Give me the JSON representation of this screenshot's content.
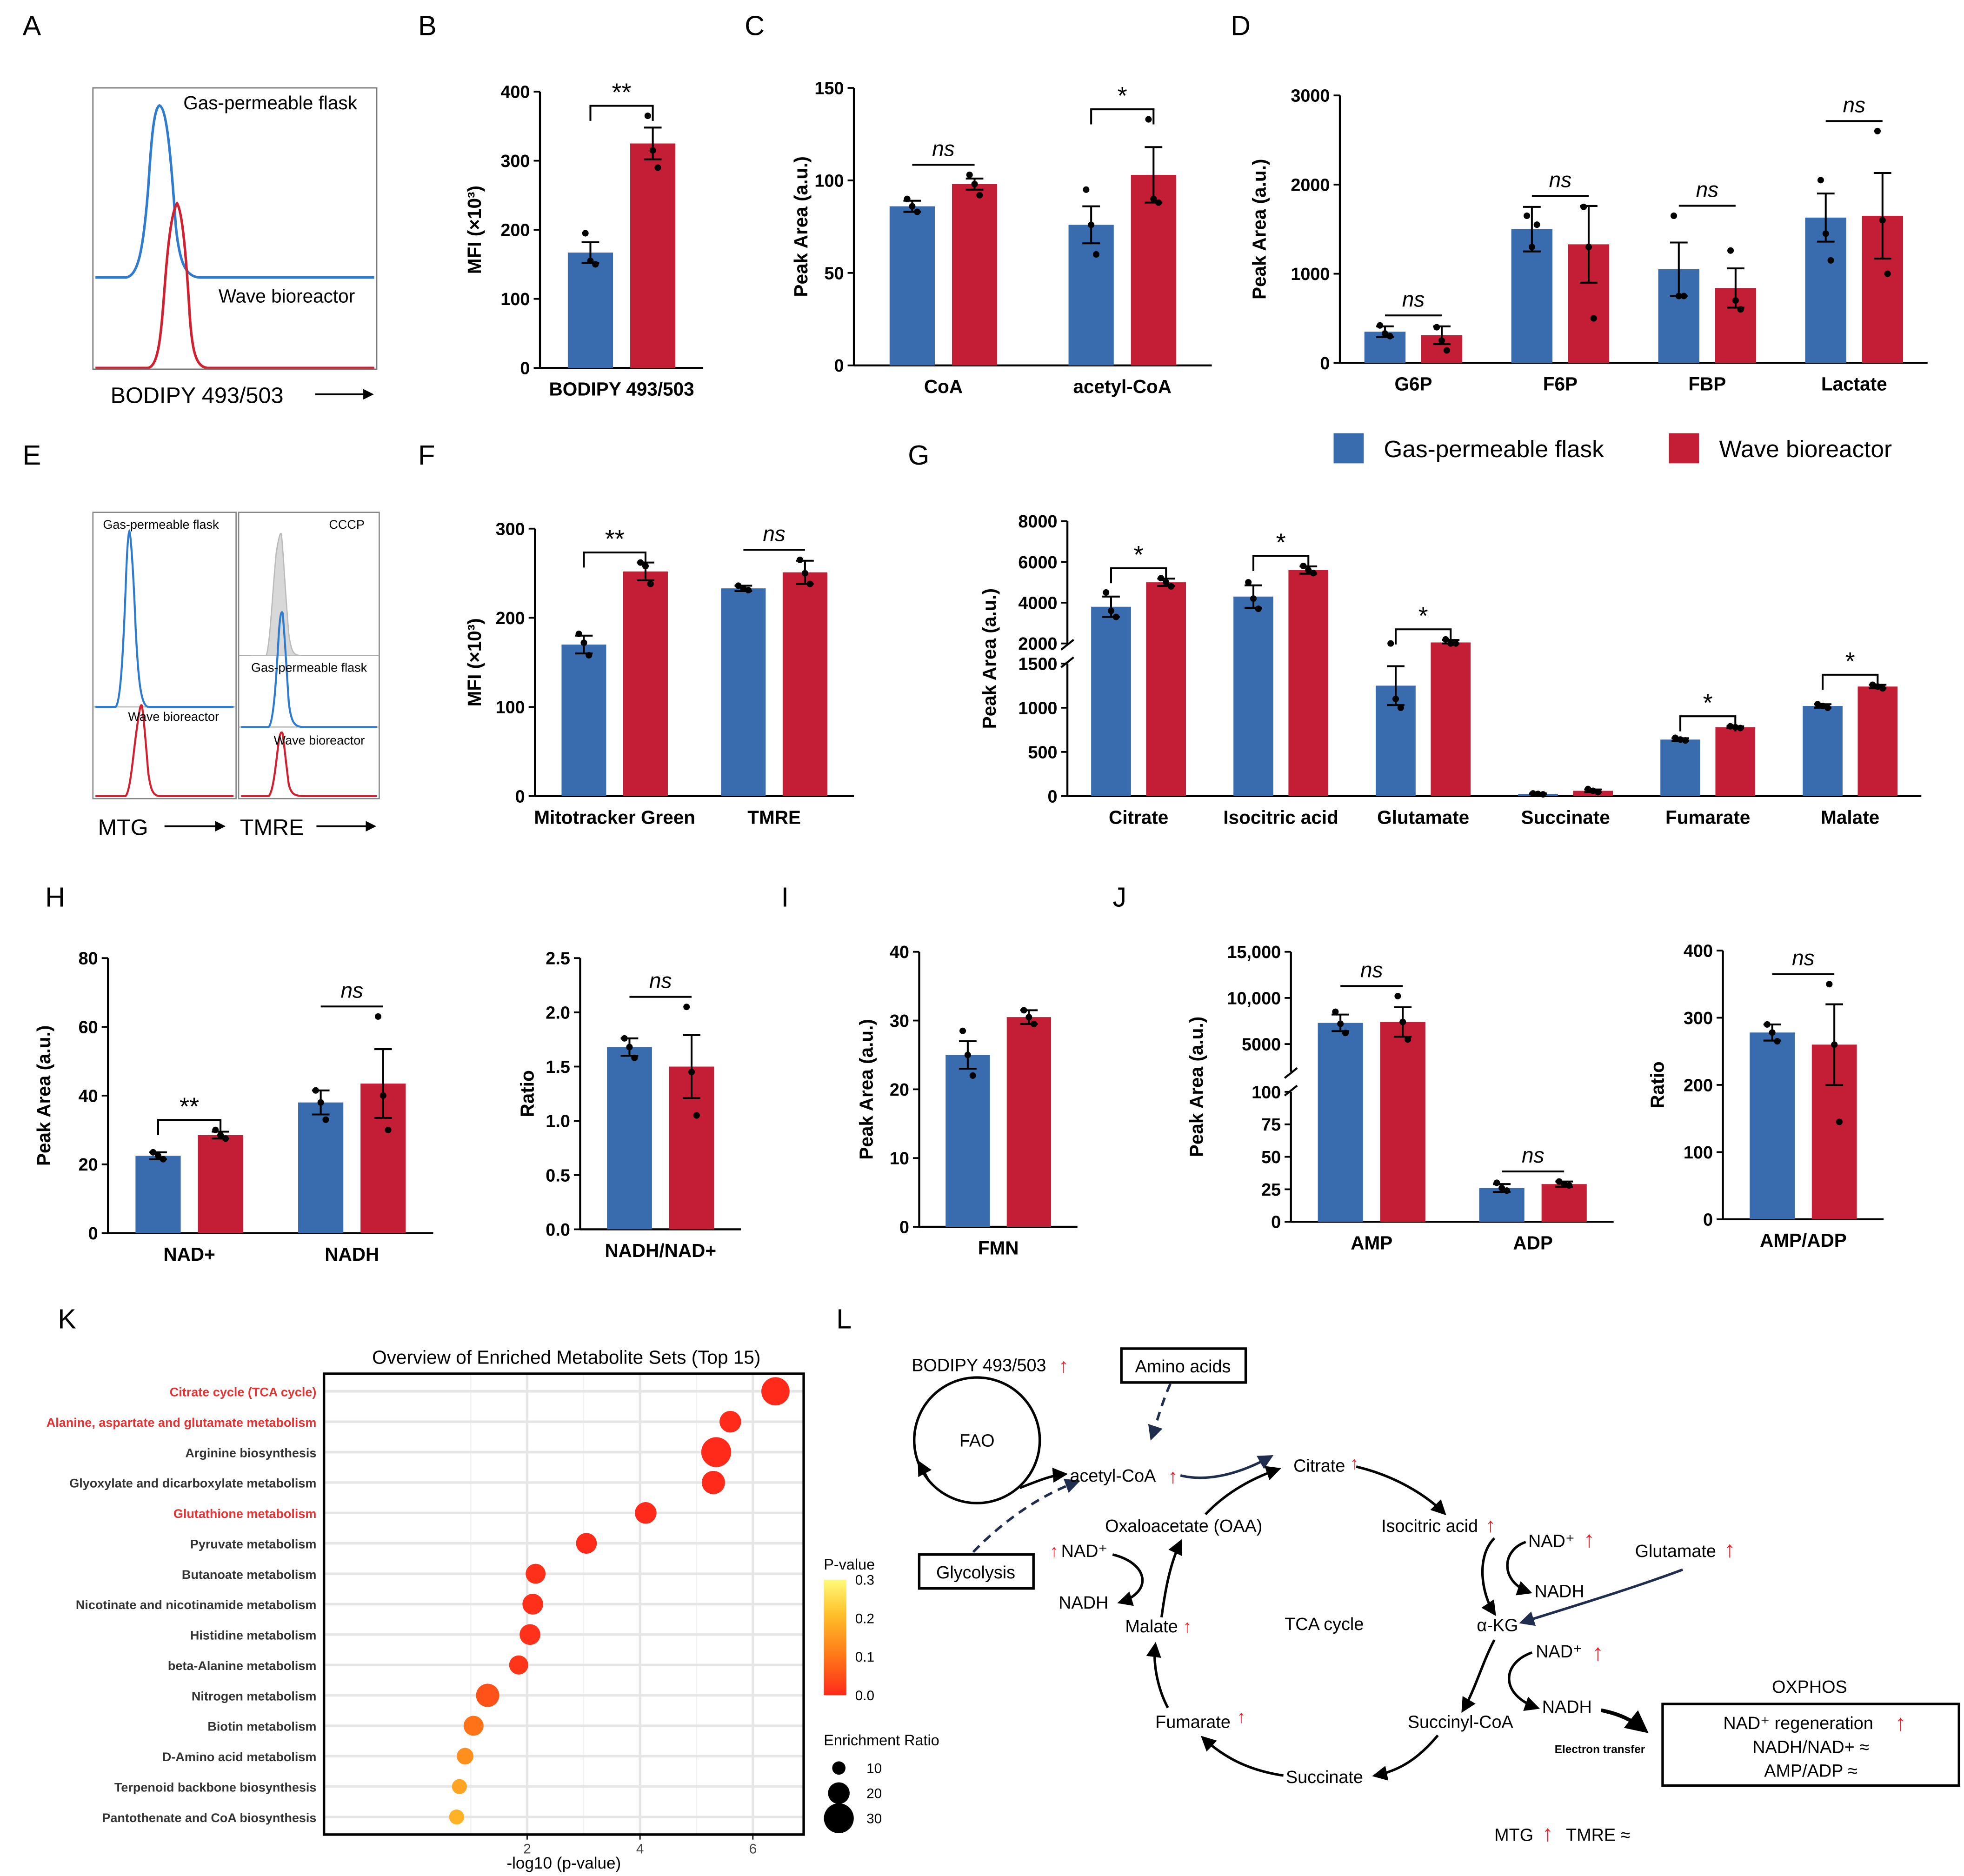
{
  "colors": {
    "blue": "#386CAF",
    "red": "#C41E36",
    "axis": "#000000",
    "sig": "#000000"
  },
  "panels": {
    "A": {
      "letter": "A",
      "top_label": "Gas-permeable flask",
      "bottom_label": "Wave bioreactor",
      "xlabel": "BODIPY 493/503"
    },
    "E": {
      "letter": "E",
      "mtg_top": "Gas-permeable flask",
      "mtg_bottom": "Wave bioreactor",
      "tmre_top": "CCCP",
      "tmre_mid": "Gas-permeable flask",
      "tmre_bottom": "Wave bioreactor",
      "xlabel_mtg": "MTG",
      "xlabel_tmre": "TMRE"
    },
    "G_legend": {
      "items": [
        {
          "label": "Gas-permeable flask",
          "color": "#386CAF"
        },
        {
          "label": "Wave bioreactor",
          "color": "#C41E36"
        }
      ]
    }
  },
  "chart_data": [
    {
      "id": "B",
      "letter": "B",
      "type": "bar",
      "ylabel": "MFI (×10³)",
      "ylim": [
        0,
        400
      ],
      "yticks": [
        0,
        100,
        200,
        300,
        400
      ],
      "categories": [
        "BODIPY 493/503"
      ],
      "series": [
        {
          "name": "Gas-permeable flask",
          "values": [
            167
          ],
          "sem": [
            15
          ],
          "points": [
            [
              195,
              155,
              150
            ]
          ]
        },
        {
          "name": "Wave bioreactor",
          "values": [
            325
          ],
          "sem": [
            23
          ],
          "points": [
            [
              365,
              315,
              290
            ]
          ]
        }
      ],
      "annotations": [
        {
          "category": 0,
          "text": "**"
        }
      ]
    },
    {
      "id": "C",
      "letter": "C",
      "type": "bar",
      "ylabel": "Peak Area (a.u.)",
      "ylim": [
        0,
        150
      ],
      "yticks": [
        0,
        50,
        100,
        150
      ],
      "categories": [
        "CoA",
        "acetyl-CoA"
      ],
      "series": [
        {
          "name": "Gas-permeable flask",
          "values": [
            86,
            76
          ],
          "sem": [
            3,
            10
          ],
          "points": [
            [
              90,
              86,
              83
            ],
            [
              95,
              76,
              60
            ]
          ]
        },
        {
          "name": "Wave bioreactor",
          "values": [
            98,
            103
          ],
          "sem": [
            3,
            15
          ],
          "points": [
            [
              103,
              98,
              92
            ],
            [
              133,
              90,
              88
            ]
          ]
        }
      ],
      "annotations": [
        {
          "category": 0,
          "text": "ns"
        },
        {
          "category": 1,
          "text": "*"
        }
      ]
    },
    {
      "id": "D",
      "letter": "D",
      "type": "bar",
      "ylabel": "Peak Area (a.u.)",
      "ylim": [
        0,
        3000
      ],
      "yticks": [
        0,
        1000,
        2000,
        3000
      ],
      "categories": [
        "G6P",
        "F6P",
        "FBP",
        "Lactate"
      ],
      "series": [
        {
          "name": "Gas-permeable flask",
          "values": [
            350,
            1500,
            1050,
            1630
          ],
          "sem": [
            60,
            250,
            300,
            270
          ],
          "points": [
            [
              420,
              330,
              300
            ],
            [
              1650,
              1300,
              1550
            ],
            [
              1650,
              750,
              750
            ],
            [
              2050,
              1450,
              1150
            ]
          ]
        },
        {
          "name": "Wave bioreactor",
          "values": [
            310,
            1330,
            840,
            1650
          ],
          "sem": [
            100,
            430,
            220,
            480
          ],
          "points": [
            [
              400,
              250,
              140
            ],
            [
              1750,
              1300,
              500
            ],
            [
              1260,
              700,
              600
            ],
            [
              2600,
              1600,
              1000
            ]
          ]
        }
      ],
      "annotations": [
        {
          "category": 0,
          "text": "ns"
        },
        {
          "category": 1,
          "text": "ns"
        },
        {
          "category": 2,
          "text": "ns"
        },
        {
          "category": 3,
          "text": "ns"
        }
      ]
    },
    {
      "id": "F",
      "letter": "F",
      "type": "bar",
      "ylabel": "MFI (×10³)",
      "ylim": [
        0,
        300
      ],
      "yticks": [
        0,
        100,
        200,
        300
      ],
      "categories": [
        "Mitotracker Green",
        "TMRE"
      ],
      "series": [
        {
          "name": "Gas-permeable flask",
          "values": [
            170,
            233
          ],
          "sem": [
            10,
            3
          ],
          "points": [
            [
              182,
              172,
              158
            ],
            [
              236,
              233,
              231
            ]
          ]
        },
        {
          "name": "Wave bioreactor",
          "values": [
            252,
            251
          ],
          "sem": [
            10,
            13
          ],
          "points": [
            [
              262,
              258,
              238
            ],
            [
              265,
              250,
              238
            ]
          ]
        }
      ],
      "annotations": [
        {
          "category": 0,
          "text": "**"
        },
        {
          "category": 1,
          "text": "ns"
        }
      ]
    },
    {
      "id": "G",
      "letter": "G",
      "type": "bar",
      "ylabel": "Peak Area (a.u.)",
      "ylim": [
        0,
        8000
      ],
      "yticks": [
        0,
        500,
        1000,
        1500,
        2000,
        4000,
        6000,
        8000
      ],
      "axis_break": [
        1500,
        2000
      ],
      "categories": [
        "Citrate",
        "Isocitric acid",
        "Glutamate",
        "Succinate",
        "Fumarate",
        "Malate"
      ],
      "series": [
        {
          "name": "Gas-permeable flask",
          "values": [
            3800,
            4300,
            1250,
            25,
            640,
            1020
          ],
          "sem": [
            500,
            550,
            220,
            5,
            15,
            20
          ],
          "points": [
            [
              4500,
              3600,
              3300
            ],
            [
              5000,
              4200,
              3700
            ],
            [
              1600,
              1100,
              1000
            ],
            [
              30,
              25,
              20
            ],
            [
              660,
              640,
              630
            ],
            [
              1040,
              1020,
              1000
            ]
          ]
        },
        {
          "name": "Wave bioreactor",
          "values": [
            5000,
            5600,
            2050,
            60,
            780,
            1240
          ],
          "sem": [
            180,
            180,
            120,
            15,
            10,
            20
          ],
          "points": [
            [
              5200,
              5000,
              4800
            ],
            [
              5800,
              5600,
              5450
            ],
            [
              2200,
              2000,
              1950
            ],
            [
              80,
              60,
              45
            ],
            [
              790,
              780,
              770
            ],
            [
              1260,
              1240,
              1220
            ]
          ]
        }
      ],
      "annotations": [
        {
          "category": 0,
          "text": "*"
        },
        {
          "category": 1,
          "text": "*"
        },
        {
          "category": 2,
          "text": "*"
        },
        {
          "category": 4,
          "text": "*"
        },
        {
          "category": 5,
          "text": "*"
        }
      ]
    },
    {
      "id": "H1",
      "letter": "H",
      "type": "bar",
      "ylabel": "Peak Area (a.u.)",
      "ylim": [
        0,
        80
      ],
      "yticks": [
        0,
        20,
        40,
        60,
        80
      ],
      "categories": [
        "NAD+",
        "NADH"
      ],
      "series": [
        {
          "name": "Gas-permeable flask",
          "values": [
            22.5,
            38
          ],
          "sem": [
            1,
            3.5
          ],
          "points": [
            [
              23.5,
              22.5,
              21.5
            ],
            [
              41.5,
              38,
              33
            ]
          ]
        },
        {
          "name": "Wave bioreactor",
          "values": [
            28.5,
            43.5
          ],
          "sem": [
            1,
            10
          ],
          "points": [
            [
              30,
              28.5,
              27.5
            ],
            [
              63,
              40,
              30
            ]
          ]
        }
      ],
      "annotations": [
        {
          "category": 0,
          "text": "**"
        },
        {
          "category": 1,
          "text": "ns"
        }
      ]
    },
    {
      "id": "H2",
      "letter": "",
      "type": "bar",
      "ylabel": "Ratio",
      "ylim": [
        0,
        2.5
      ],
      "yticks": [
        0,
        0.5,
        1.0,
        1.5,
        2.0,
        2.5
      ],
      "tick_decimals": 1,
      "categories": [
        "NADH/NAD+"
      ],
      "series": [
        {
          "name": "Gas-permeable flask",
          "values": [
            1.68
          ],
          "sem": [
            0.08
          ],
          "points": [
            [
              1.76,
              1.68,
              1.58
            ]
          ]
        },
        {
          "name": "Wave bioreactor",
          "values": [
            1.5
          ],
          "sem": [
            0.29
          ],
          "points": [
            [
              2.05,
              1.45,
              1.05
            ]
          ]
        }
      ],
      "annotations": [
        {
          "category": 0,
          "text": "ns"
        }
      ]
    },
    {
      "id": "I",
      "letter": "I",
      "type": "bar",
      "ylabel": "Peak Area (a.u.)",
      "ylim": [
        0,
        40
      ],
      "yticks": [
        0,
        10,
        20,
        30,
        40
      ],
      "categories": [
        "FMN"
      ],
      "series": [
        {
          "name": "Gas-permeable flask",
          "values": [
            25
          ],
          "sem": [
            2
          ],
          "points": [
            [
              28.5,
              25,
              22
            ]
          ]
        },
        {
          "name": "Wave bioreactor",
          "values": [
            30.5
          ],
          "sem": [
            1
          ],
          "points": [
            [
              31.5,
              30.5,
              29.5
            ]
          ]
        }
      ],
      "annotations": []
    },
    {
      "id": "J1",
      "letter": "J",
      "type": "bar",
      "ylabel": "Peak Area (a.u.)",
      "ylim": [
        0,
        15000
      ],
      "yticks": [
        0,
        25,
        50,
        75,
        100,
        5000,
        10000,
        15000
      ],
      "tick_labels": [
        "0",
        "25",
        "50",
        "75",
        "100",
        "5000",
        "10,000",
        "15,000"
      ],
      "axis_break": [
        100,
        2000
      ],
      "categories": [
        "AMP",
        "ADP"
      ],
      "series": [
        {
          "name": "Gas-permeable flask",
          "values": [
            7300,
            26
          ],
          "sem": [
            900,
            3
          ],
          "points": [
            [
              8500,
              7200,
              6200
            ],
            [
              30,
              26,
              24
            ]
          ]
        },
        {
          "name": "Wave bioreactor",
          "values": [
            7400,
            29
          ],
          "sem": [
            1600,
            2
          ],
          "points": [
            [
              10200,
              7400,
              5500
            ],
            [
              31,
              29,
              28
            ]
          ]
        }
      ],
      "annotations": [
        {
          "category": 0,
          "text": "ns"
        },
        {
          "category": 1,
          "text": "ns"
        }
      ]
    },
    {
      "id": "J2",
      "letter": "",
      "type": "bar",
      "ylabel": "Ratio",
      "ylim": [
        0,
        400
      ],
      "yticks": [
        0,
        100,
        200,
        300,
        400
      ],
      "categories": [
        "AMP/ADP"
      ],
      "series": [
        {
          "name": "Gas-permeable flask",
          "values": [
            278
          ],
          "sem": [
            12
          ],
          "points": [
            [
              290,
              278,
              265
            ]
          ]
        },
        {
          "name": "Wave bioreactor",
          "values": [
            260
          ],
          "sem": [
            60
          ],
          "points": [
            [
              350,
              260,
              145
            ]
          ]
        }
      ],
      "annotations": [
        {
          "category": 0,
          "text": "ns"
        }
      ]
    },
    {
      "id": "K",
      "letter": "K",
      "type": "scatter",
      "title": "Overview of Enriched Metabolite Sets (Top 15)",
      "xlabel": "-log10 (p-value)",
      "xlim": [
        -1.6,
        6.9
      ],
      "xticks": [
        2,
        4,
        6
      ],
      "categories": [
        "Citrate cycle (TCA cycle)",
        "Alanine, aspartate and glutamate metabolism",
        "Arginine biosynthesis",
        "Glyoxylate and dicarboxylate metabolism",
        "Glutathione metabolism",
        "Pyruvate metabolism",
        "Butanoate metabolism",
        "Nicotinate and nicotinamide metabolism",
        "Histidine metabolism",
        "beta-Alanine metabolism",
        "Nitrogen metabolism",
        "Biotin metabolism",
        "D-Amino acid metabolism",
        "Terpenoid backbone biosynthesis",
        "Pantothenate and CoA biosynthesis"
      ],
      "highlight": [
        0,
        1,
        4
      ],
      "x": [
        6.4,
        5.6,
        5.35,
        5.3,
        4.1,
        3.05,
        2.15,
        2.1,
        2.05,
        1.85,
        1.3,
        1.05,
        0.9,
        0.8,
        0.75
      ],
      "p_values": [
        0.0,
        0.0,
        0.0,
        0.0,
        0.0,
        0.001,
        0.007,
        0.008,
        0.009,
        0.014,
        0.05,
        0.09,
        0.13,
        0.16,
        0.18
      ],
      "enrichment_ratio": [
        28,
        20,
        30,
        22,
        20,
        19,
        18,
        19,
        19,
        17,
        22,
        18,
        14,
        12,
        12
      ],
      "colorbar": {
        "label": "P-value",
        "ticks": [
          0.0,
          0.1,
          0.2,
          0.3
        ],
        "tick_labels": [
          "0.0",
          "0.1",
          "0.2",
          "0.3"
        ]
      },
      "size_legend": {
        "label": "Enrichment Ratio",
        "values": [
          10,
          20,
          30
        ]
      }
    }
  ],
  "pathway": {
    "letter": "L",
    "bodipy": "BODIPY 493/503",
    "amino_acids": "Amino acids",
    "fao": "FAO",
    "glycolysis": "Glycolysis",
    "acetyl_coa": "acetyl-CoA",
    "citrate": "Citrate",
    "isocitric": "Isocitric acid",
    "nad1": "NAD⁺",
    "nadh1": "NADH",
    "glutamate": "Glutamate",
    "akg": "α-KG",
    "nad2": "NAD⁺",
    "nadh2": "NADH",
    "succinyl_coa": "Succinyl-CoA",
    "succinate": "Succinate",
    "fumarate": "Fumarate",
    "malate": "Malate",
    "nadh3": "NADH",
    "nad3": "NAD⁺",
    "oaa": "Oxaloacetate (OAA)",
    "tca": "TCA cycle",
    "electron": "Electron transfer",
    "oxphos": "OXPHOS",
    "oxphos_1": "NAD⁺ regeneration",
    "oxphos_2": "NADH/NAD+ ≈",
    "oxphos_3": "AMP/ADP ≈",
    "mtg": "MTG",
    "tmre": "TMRE ≈",
    "up_arrow": "↑"
  }
}
